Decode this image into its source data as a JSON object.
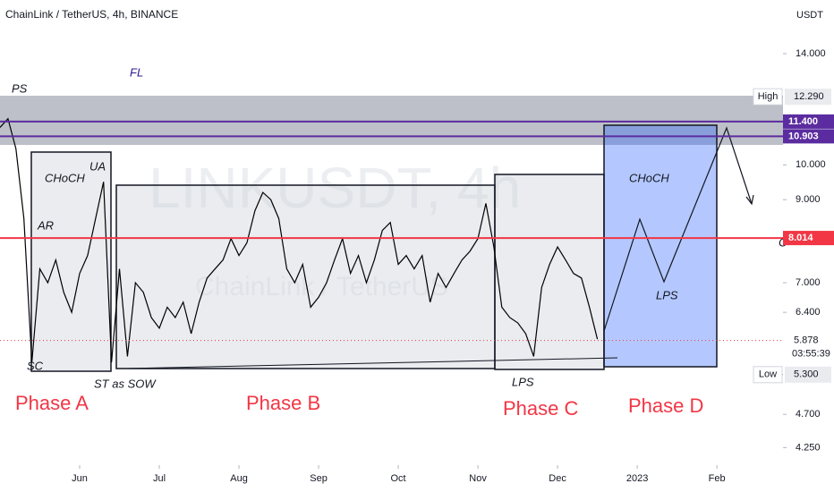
{
  "chart_data": {
    "type": "line",
    "title": "ChainLink / TetherUS, 4h, BINANCE",
    "watermark": "LINKUSDT, 4h",
    "watermark_sub": "ChainLink / TetherUS",
    "y_unit": "USDT",
    "color": "#000000",
    "values": [
      11.2,
      11.5,
      10.5,
      8.5,
      5.5,
      7.3,
      7.0,
      7.5,
      6.8,
      6.4,
      7.2,
      7.6,
      8.5,
      9.5,
      5.5,
      7.3,
      5.6,
      7.0,
      6.8,
      6.3,
      6.1,
      6.5,
      6.3,
      6.6,
      6.0,
      6.6,
      7.1,
      7.3,
      7.5,
      8.0,
      7.6,
      7.9,
      8.7,
      9.2,
      9.0,
      8.5,
      7.3,
      7.0,
      7.4,
      6.5,
      6.7,
      7.0,
      7.5,
      8.0,
      7.2,
      7.6,
      7.0,
      7.5,
      8.2,
      8.4,
      7.4,
      7.6,
      7.3,
      7.6,
      6.6,
      7.2,
      6.9,
      7.2,
      7.5,
      7.7,
      8.0,
      8.9,
      7.8,
      6.5,
      6.3,
      6.2,
      6.0,
      5.6,
      6.9,
      7.4,
      7.8,
      7.5,
      7.2,
      7.1,
      6.5,
      5.9
    ],
    "log_scale": true,
    "ylim": [
      4.03,
      16.47
    ],
    "yticks": [
      {
        "value": 14,
        "label": "14.000"
      },
      {
        "value": 10,
        "label": "10.000"
      },
      {
        "value": 9,
        "label": "9.000"
      },
      {
        "value": 7,
        "label": "7.000"
      },
      {
        "value": 6.4,
        "label": "6.400"
      },
      {
        "value": 4.7,
        "label": "4.700"
      },
      {
        "value": 4.25,
        "label": "4.250"
      }
    ],
    "xlim": [
      0,
      98.3
    ],
    "xticks": [
      {
        "value": 10,
        "label": "Jun"
      },
      {
        "value": 20,
        "label": "Jul"
      },
      {
        "value": 30,
        "label": "Aug"
      },
      {
        "value": 40,
        "label": "Sep"
      },
      {
        "value": 50,
        "label": "Oct"
      },
      {
        "value": 60,
        "label": "Nov"
      },
      {
        "value": 70,
        "label": "Dec"
      },
      {
        "value": 80,
        "label": "2023"
      },
      {
        "value": 90,
        "label": "Feb"
      }
    ],
    "levels": [
      {
        "value": 11.4,
        "label": "11.400",
        "color": "#5b2c9f"
      },
      {
        "value": 10.903,
        "label": "10.903",
        "color": "#5b2c9f"
      },
      {
        "value": 8.014,
        "label": "8.014",
        "color": "#f23645"
      }
    ],
    "high": {
      "name": "High",
      "value": 12.29,
      "label": "12.290"
    },
    "low": {
      "name": "Low",
      "value": 5.3,
      "label": "5.300"
    },
    "last": {
      "value": 5.878,
      "label": "5.878",
      "countdown": "03:55:39"
    },
    "annotations": [
      "PS",
      "FL",
      "CHoCH",
      "UA",
      "AR",
      "SC",
      "ST as SOW",
      "Phase A",
      "Phase B",
      "LPS",
      "Phase C",
      "Phase D",
      "CHoCH",
      "LPS",
      "C"
    ]
  }
}
